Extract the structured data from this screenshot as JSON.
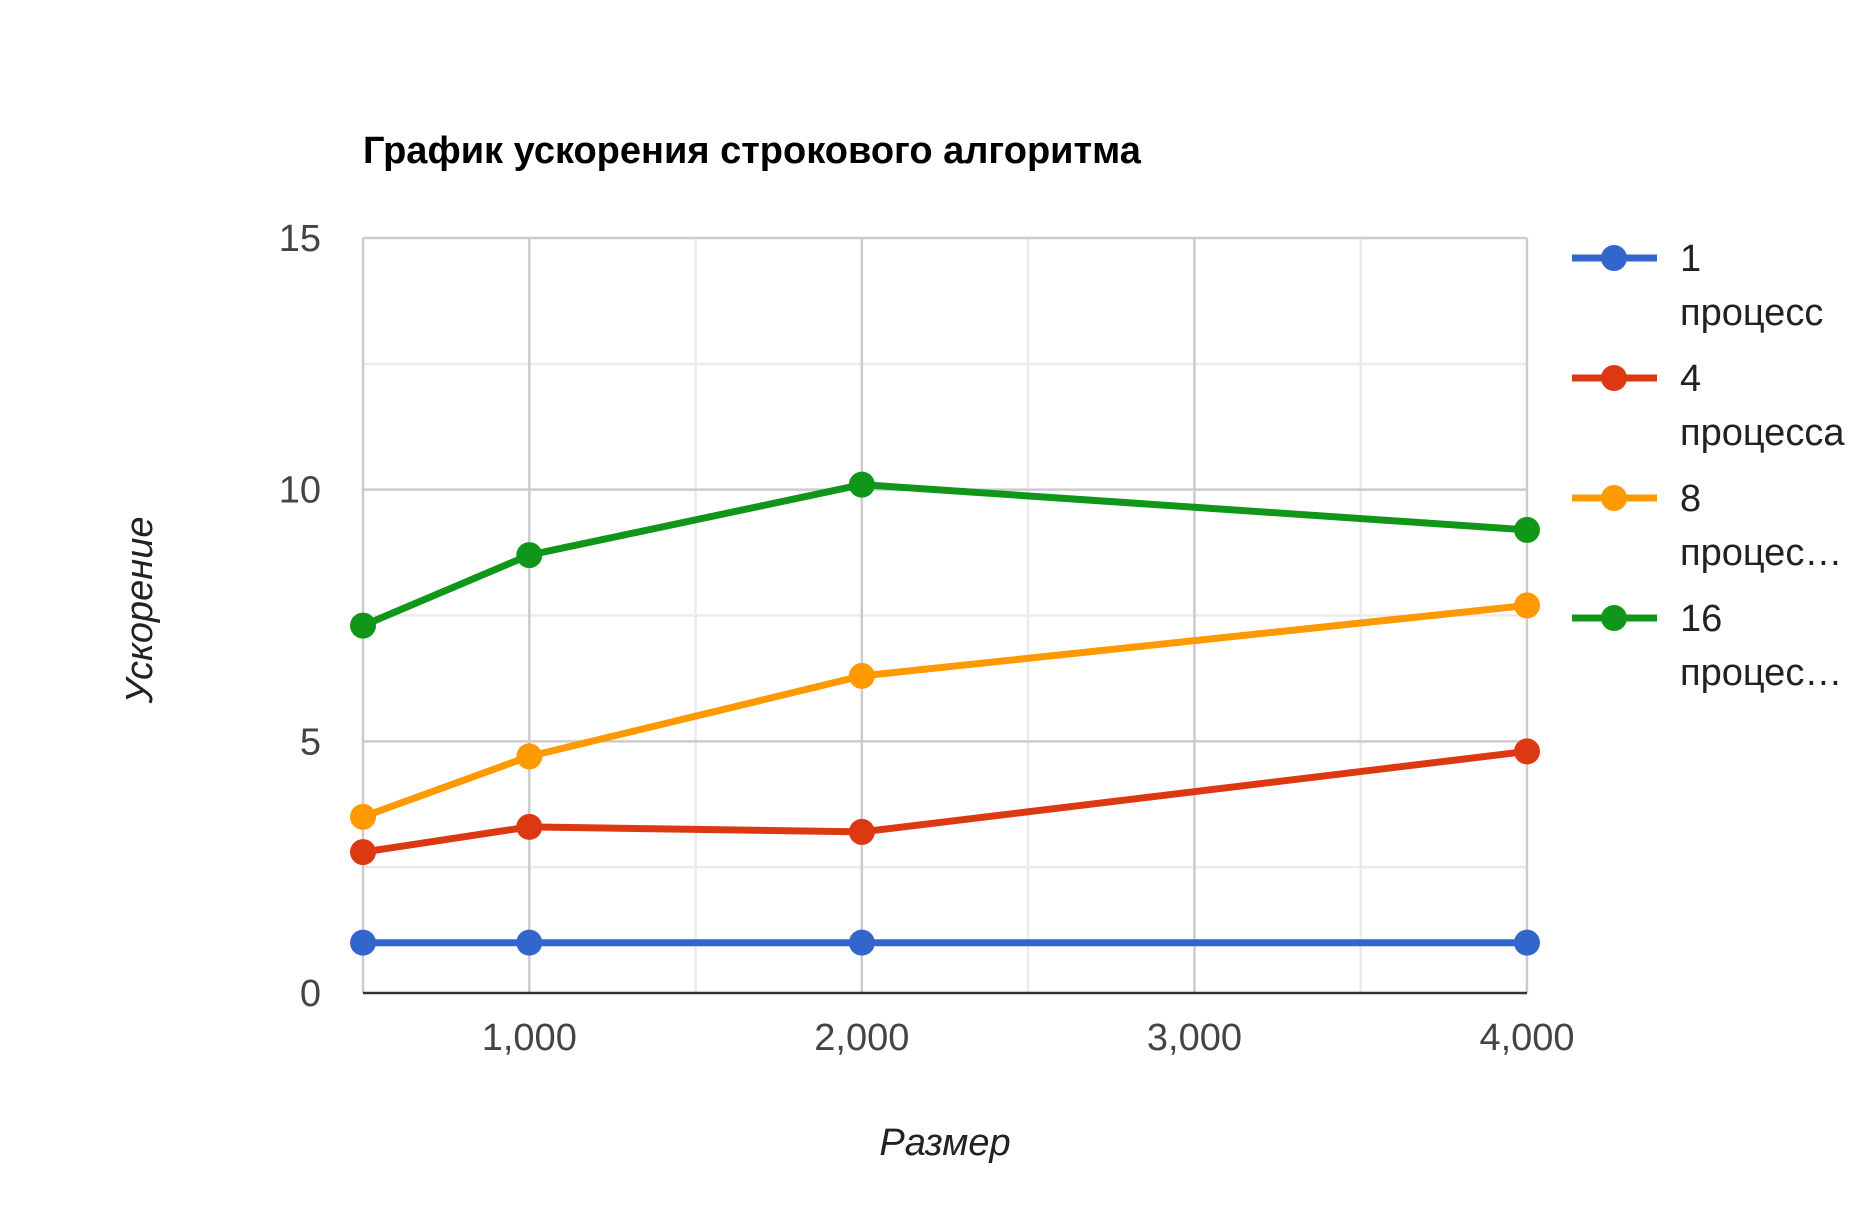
{
  "chart_data": {
    "type": "line",
    "title": "График ускорения строкового алгоритма",
    "xlabel": "Размер",
    "ylabel": "Ускорение",
    "xlim": [
      500,
      4000
    ],
    "ylim": [
      0,
      15
    ],
    "x_ticks": [
      "1,000",
      "2,000",
      "3,000",
      "4,000"
    ],
    "y_ticks": [
      "0",
      "5",
      "10",
      "15"
    ],
    "grid": true,
    "legend_position": "right",
    "x": [
      500,
      1000,
      2000,
      4000
    ],
    "series": [
      {
        "name": "1 процесс",
        "legend_lines": [
          "1",
          "процесс"
        ],
        "color": "#3366cc",
        "values": [
          1,
          1,
          1,
          1
        ]
      },
      {
        "name": "4 процесса",
        "legend_lines": [
          "4",
          "процесса"
        ],
        "color": "#dc3912",
        "values": [
          2.8,
          3.3,
          3.2,
          4.8
        ]
      },
      {
        "name": "8 процес…",
        "legend_lines": [
          "8",
          "процес…"
        ],
        "color": "#ff9900",
        "values": [
          3.5,
          4.7,
          6.3,
          7.7
        ]
      },
      {
        "name": "16 процес…",
        "legend_lines": [
          "16",
          "процес…"
        ],
        "color": "#109618",
        "values": [
          7.3,
          8.7,
          10.1,
          9.2
        ]
      }
    ]
  }
}
